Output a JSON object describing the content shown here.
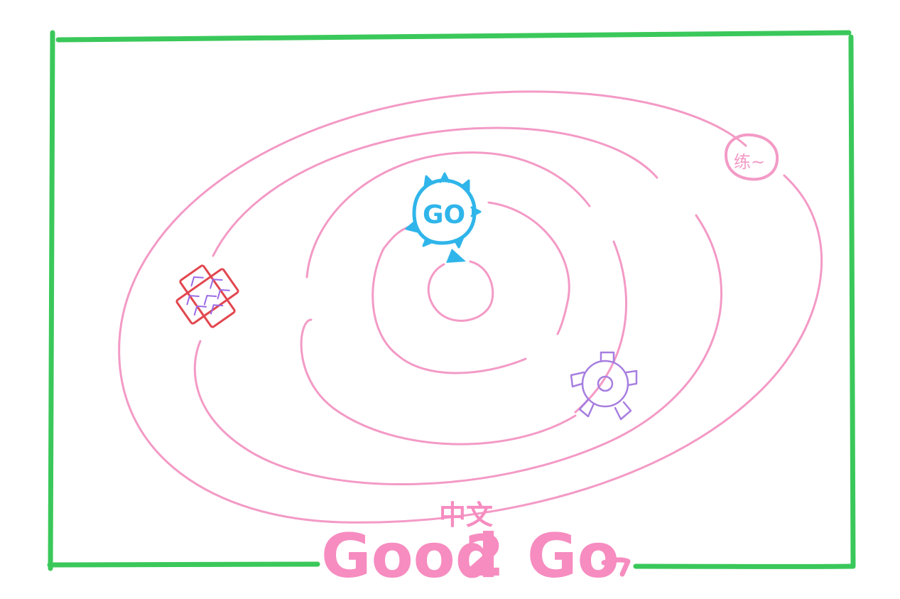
{
  "colors": {
    "frame": "#3ac85a",
    "orbit": "#f39ac6",
    "title": "#f68cc0",
    "go_logo": "#2fb5ea",
    "gear": "#a77ee0",
    "red_outline": "#e2474f",
    "purple_stripe": "#9b6ae6"
  },
  "title": {
    "main_left": "Good",
    "main_mid": "2",
    "main_right": "Go",
    "superscript": "中文"
  },
  "go_logo": {
    "label": "GO"
  },
  "top_right_planet": {
    "label": "练~"
  },
  "icons": {
    "go_logo": "gopher-go-sun-icon",
    "gear": "gear-icon",
    "cross": "striped-cross-icon",
    "planet": "planet-badge-icon"
  }
}
